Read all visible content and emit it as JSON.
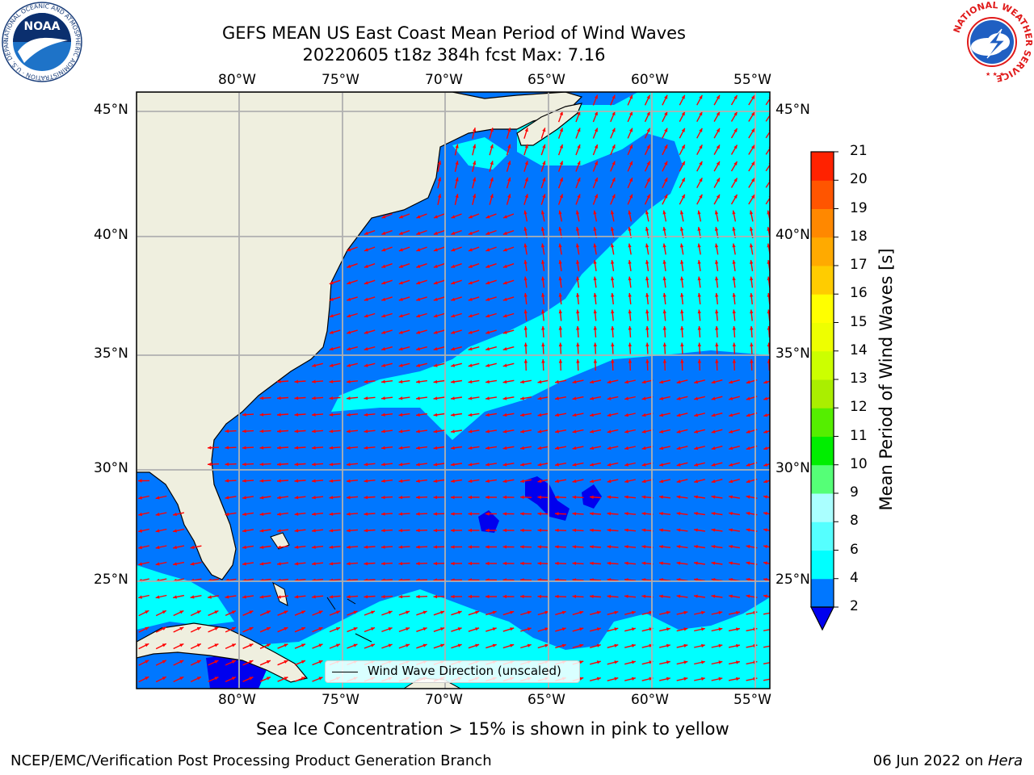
{
  "titles": {
    "line1": "GEFS MEAN US East Coast Mean Period of Wind Waves",
    "line2": "20220605 t18z 384h fcst   Max: 7.16"
  },
  "map": {
    "region": "US East Coast / Western North Atlantic",
    "lon_labels": [
      "80°W",
      "75°W",
      "70°W",
      "65°W",
      "60°W",
      "55°W"
    ],
    "lat_labels": [
      "45°N",
      "40°N",
      "35°N",
      "30°N",
      "25°N"
    ],
    "lon_range": [
      "85°W",
      "54.4°W"
    ],
    "lat_range": [
      "20.5°N",
      "46°N"
    ],
    "gridlines": true,
    "arrow_color": "#ff0000",
    "land_color": "#efefdf",
    "legend": "Wind Wave Direction (unscaled)"
  },
  "colorbar": {
    "label": "Mean Period of Wind Waves [s]",
    "ticks": [
      "21",
      "20",
      "19",
      "18",
      "17",
      "16",
      "15",
      "14",
      "13",
      "12",
      "11",
      "10",
      "9",
      "8",
      "6",
      "4",
      "2"
    ],
    "levels": [
      2,
      4,
      6,
      8,
      9,
      10,
      11,
      12,
      13,
      14,
      15,
      16,
      17,
      18,
      19,
      20,
      21
    ],
    "colors": [
      "#0077ff",
      "#00ffff",
      "#55ffff",
      "#aaffff",
      "#55ff77",
      "#00ee00",
      "#55ee00",
      "#aaee00",
      "#ccff00",
      "#eeff00",
      "#ffff00",
      "#ffcc00",
      "#ffaa00",
      "#ff8800",
      "#ff5500",
      "#ff2200"
    ],
    "under_color": "#0000ee"
  },
  "notes": {
    "sea_ice": "Sea Ice Concentration > 15% is shown in pink to yellow",
    "credit": "NCEP/EMC/Verification Post Processing Product Generation Branch",
    "date_prefix": "06 Jun 2022 on ",
    "machine": "Hera"
  },
  "logos": {
    "left_text": "NOAA",
    "left_ring": "NATIONAL OCEANIC AND ATMOSPHERIC ADMINISTRATION · U.S. DEPARTMENT OF COMMERCE",
    "right_ring": "NATIONAL WEATHER SERVICE"
  }
}
